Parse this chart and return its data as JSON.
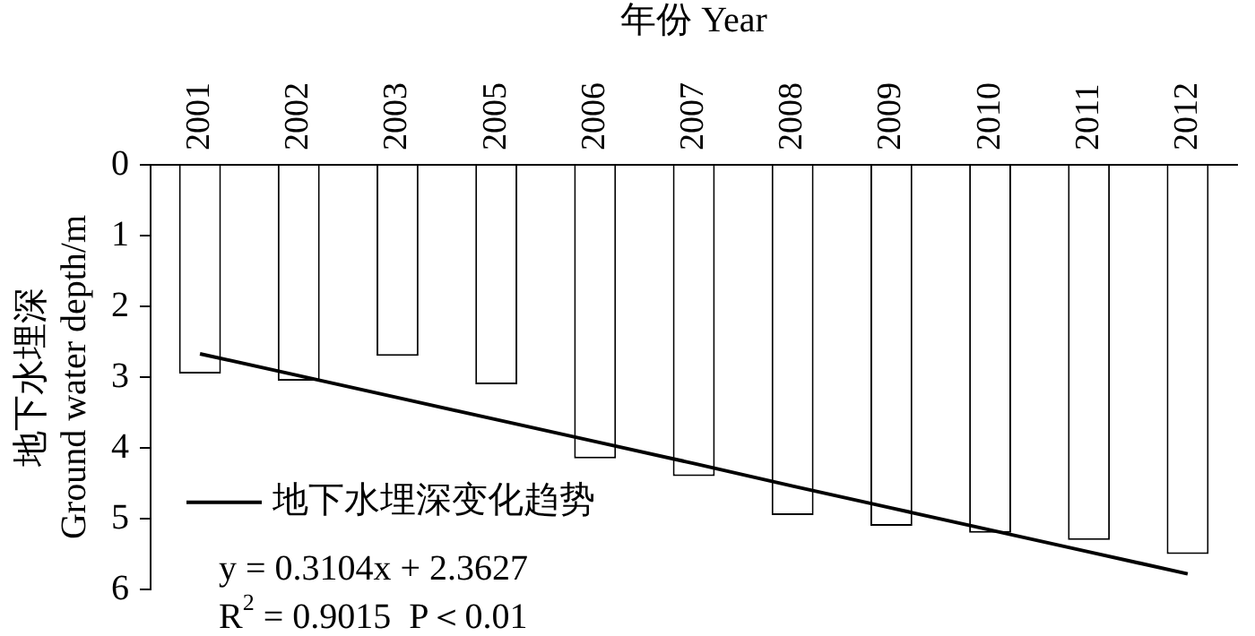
{
  "chart_data": {
    "type": "bar",
    "xlabel": "年份 Year",
    "ylabel": "地下水埋深\nGround water depth/m",
    "categories": [
      "2001",
      "2002",
      "2003",
      "2005",
      "2006",
      "2007",
      "2008",
      "2009",
      "2010",
      "2011",
      "2012"
    ],
    "series": [
      {
        "color": "#ffffff",
        "values": [
          2.95,
          3.05,
          2.7,
          3.1,
          4.15,
          4.4,
          4.95,
          5.1,
          5.2,
          5.3,
          5.5
        ]
      },
      {
        "type": "line",
        "name": "地下水埋深变化趋势",
        "color": "#000000",
        "values": [
          2.67,
          2.98,
          3.29,
          3.6,
          3.91,
          4.22,
          4.54,
          4.85,
          5.16,
          5.47,
          5.78
        ]
      }
    ],
    "ylim": [
      6,
      0
    ],
    "yticks": [
      0,
      1,
      2,
      3,
      4,
      5,
      6
    ],
    "grid": false,
    "legend": "bottom left",
    "marker": "none",
    "line_style": "solid",
    "annotations": [
      "y = 0.3104x + 2.3627",
      "R$^{2}$ = 0.9015  P＜0.01"
    ]
  }
}
